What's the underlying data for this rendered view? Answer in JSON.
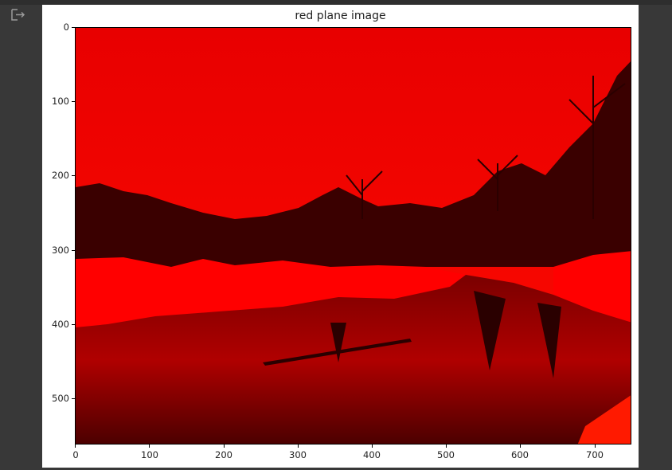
{
  "gutter": {
    "icon": "output-redirect-icon"
  },
  "figure": {
    "title": "red plane image",
    "y_ticks": [
      "0",
      "100",
      "200",
      "300",
      "400",
      "500"
    ],
    "x_ticks": [
      "0",
      "100",
      "200",
      "300",
      "400",
      "500",
      "600",
      "700"
    ],
    "image_extent": {
      "x": [
        0,
        750
      ],
      "y": [
        0,
        562
      ]
    },
    "channel_color": "#ff0000"
  }
}
